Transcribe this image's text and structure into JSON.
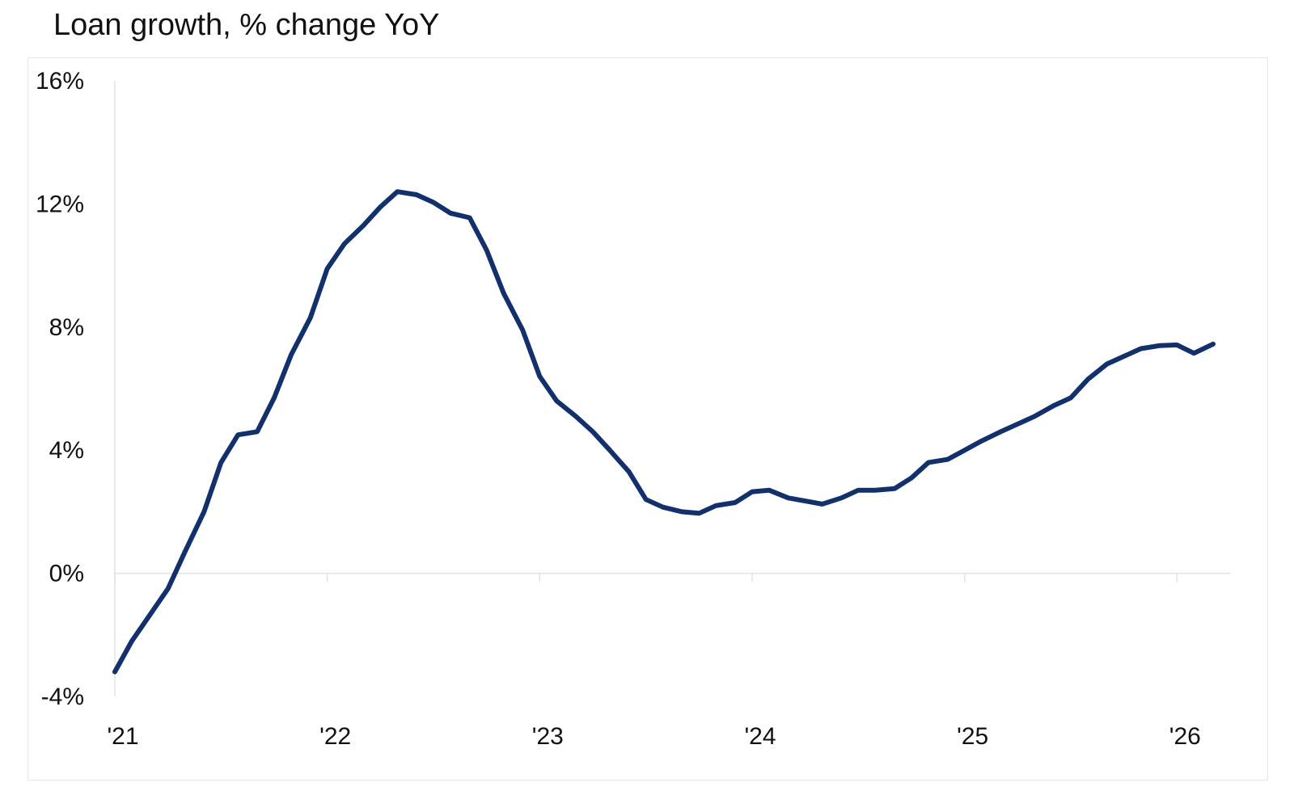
{
  "chart_data": {
    "type": "line",
    "title": "Loan growth, % change YoY",
    "xlabel": "",
    "ylabel": "",
    "ylim": [
      -4,
      16
    ],
    "y_ticks": [
      {
        "value": 16,
        "label": "16%"
      },
      {
        "value": 12,
        "label": "12%"
      },
      {
        "value": 8,
        "label": "8%"
      },
      {
        "value": 4,
        "label": "4%"
      },
      {
        "value": 0,
        "label": "0%"
      },
      {
        "value": -4,
        "label": "-4%"
      }
    ],
    "x_ticks": [
      {
        "value": 2021,
        "label": "'21"
      },
      {
        "value": 2022,
        "label": "'22"
      },
      {
        "value": 2023,
        "label": "'23"
      },
      {
        "value": 2024,
        "label": "'24"
      },
      {
        "value": 2025,
        "label": "'25"
      },
      {
        "value": 2026,
        "label": "'26"
      }
    ],
    "xlim": [
      2021,
      2026.25
    ],
    "grid": false,
    "legend": "none",
    "series": [
      {
        "color": "#12306b",
        "points": [
          [
            2021.0,
            -3.2
          ],
          [
            2021.08,
            -2.2
          ],
          [
            2021.17,
            -1.3
          ],
          [
            2021.25,
            -0.5
          ],
          [
            2021.33,
            0.7
          ],
          [
            2021.42,
            2.0
          ],
          [
            2021.5,
            3.6
          ],
          [
            2021.58,
            4.5
          ],
          [
            2021.67,
            4.6
          ],
          [
            2021.75,
            5.7
          ],
          [
            2021.83,
            7.1
          ],
          [
            2021.92,
            8.3
          ],
          [
            2022.0,
            9.9
          ],
          [
            2022.08,
            10.7
          ],
          [
            2022.17,
            11.3
          ],
          [
            2022.25,
            11.9
          ],
          [
            2022.33,
            12.4
          ],
          [
            2022.42,
            12.3
          ],
          [
            2022.5,
            12.05
          ],
          [
            2022.58,
            11.7
          ],
          [
            2022.67,
            11.55
          ],
          [
            2022.75,
            10.5
          ],
          [
            2022.83,
            9.1
          ],
          [
            2022.92,
            7.9
          ],
          [
            2023.0,
            6.4
          ],
          [
            2023.08,
            5.6
          ],
          [
            2023.17,
            5.1
          ],
          [
            2023.25,
            4.6
          ],
          [
            2023.33,
            4.0
          ],
          [
            2023.42,
            3.3
          ],
          [
            2023.5,
            2.4
          ],
          [
            2023.58,
            2.15
          ],
          [
            2023.67,
            2.0
          ],
          [
            2023.75,
            1.95
          ],
          [
            2023.83,
            2.2
          ],
          [
            2023.92,
            2.3
          ],
          [
            2024.0,
            2.65
          ],
          [
            2024.08,
            2.7
          ],
          [
            2024.17,
            2.45
          ],
          [
            2024.25,
            2.35
          ],
          [
            2024.33,
            2.25
          ],
          [
            2024.42,
            2.45
          ],
          [
            2024.5,
            2.7
          ],
          [
            2024.58,
            2.7
          ],
          [
            2024.67,
            2.75
          ],
          [
            2024.75,
            3.1
          ],
          [
            2024.83,
            3.6
          ],
          [
            2024.92,
            3.7
          ],
          [
            2025.0,
            4.0
          ],
          [
            2025.08,
            4.3
          ],
          [
            2025.17,
            4.6
          ],
          [
            2025.25,
            4.85
          ],
          [
            2025.33,
            5.1
          ],
          [
            2025.42,
            5.45
          ],
          [
            2025.5,
            5.7
          ],
          [
            2025.58,
            6.3
          ],
          [
            2025.67,
            6.8
          ],
          [
            2025.75,
            7.05
          ],
          [
            2025.83,
            7.3
          ],
          [
            2025.92,
            7.4
          ],
          [
            2026.0,
            7.42
          ],
          [
            2026.08,
            7.15
          ],
          [
            2026.17,
            7.45
          ]
        ]
      }
    ]
  }
}
